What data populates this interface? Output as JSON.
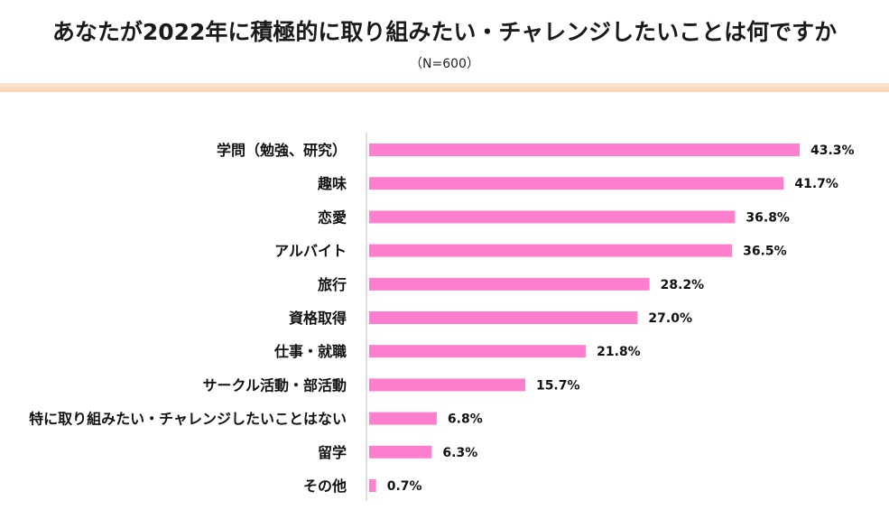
{
  "chart_data": {
    "type": "bar",
    "orientation": "horizontal",
    "title": "あなたが2022年に積極的に取り組みたい・チャレンジしたいことは何ですか",
    "subtitle": "（N=600）",
    "categories": [
      "学問（勉強、研究）",
      "趣味",
      "恋愛",
      "アルバイト",
      "旅行",
      "資格取得",
      "仕事・就職",
      "サークル活動・部活動",
      "特に取り組みたい・チャレンジしたいことはない",
      "留学",
      "その他"
    ],
    "values": [
      43.3,
      41.7,
      36.8,
      36.5,
      28.2,
      27.0,
      21.8,
      15.7,
      6.8,
      6.3,
      0.7
    ],
    "value_labels": [
      "43.3%",
      "41.7%",
      "36.8%",
      "36.5%",
      "28.2%",
      "27.0%",
      "21.8%",
      "15.7%",
      "6.8%",
      "6.3%",
      "0.7%"
    ],
    "xlim": [
      0,
      50
    ],
    "unit": "%",
    "bar_color": "#ff7fcf",
    "grid": false
  }
}
